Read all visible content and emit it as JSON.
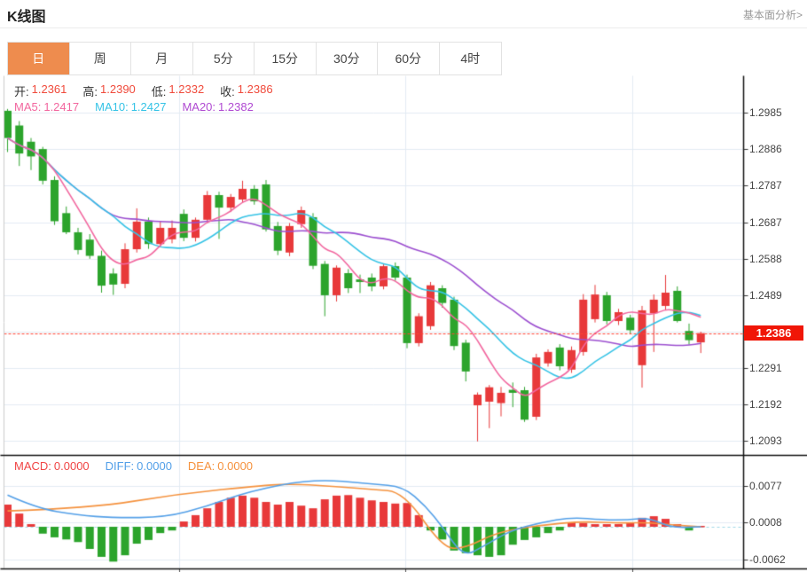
{
  "header": {
    "title": "K线图",
    "link": "基本面分析>"
  },
  "tabs": {
    "items": [
      "日",
      "周",
      "月",
      "5分",
      "15分",
      "30分",
      "60分",
      "4时"
    ],
    "active": "日",
    "active_index": 0
  },
  "legend": {
    "ohlc": [
      {
        "label": "开:",
        "value": "1.2361"
      },
      {
        "label": "高:",
        "value": "1.2390"
      },
      {
        "label": "低:",
        "value": "1.2332"
      },
      {
        "label": "收:",
        "value": "1.2386"
      }
    ],
    "ma": [
      {
        "label": "MA5:",
        "value": "1.2417",
        "color": "#f2679f"
      },
      {
        "label": "MA10:",
        "value": "1.2427",
        "color": "#35c3e6"
      },
      {
        "label": "MA20:",
        "value": "1.2382",
        "color": "#b04ad2"
      }
    ],
    "macd": [
      {
        "label": "MACD:",
        "value": "0.0000",
        "color": "#f04545"
      },
      {
        "label": "DIFF:",
        "value": "0.0000",
        "color": "#54a0e8"
      },
      {
        "label": "DEA:",
        "value": "0.0000",
        "color": "#f5923e"
      }
    ]
  },
  "price_axis": {
    "labels": [
      "1.2985",
      "1.2886",
      "1.2787",
      "1.2687",
      "1.2588",
      "1.2489",
      "1.2291",
      "1.2192",
      "1.2093"
    ],
    "current": "1.2386"
  },
  "macd_axis": {
    "labels": [
      "0.0077",
      "0.0008",
      "-0.0062"
    ]
  },
  "colors": {
    "up": "#e8393a",
    "down": "#2ca42c",
    "badge": "#f01607",
    "price_line": "#ff4433",
    "ma5": "#f2679f",
    "ma10": "#35c3e6",
    "ma20": "#9c4fd0",
    "diff_line": "#54a0e8",
    "dea_line": "#f5923e",
    "zero_dash": "#9fd8e8",
    "grid": "#e3ebf3",
    "border_dark": "#111",
    "border_light": "#ccc",
    "tab_active": "#ee8c4e"
  },
  "chart_data": {
    "type": "candlestick",
    "title": "K线图",
    "period": "日",
    "current_price": 1.2386,
    "last_bar": {
      "open": 1.2361,
      "high": 1.239,
      "low": 1.2332,
      "close": 1.2386
    },
    "y_axis": {
      "ticks": [
        1.2985,
        1.2886,
        1.2787,
        1.2687,
        1.2588,
        1.2489,
        1.239,
        1.2291,
        1.2192,
        1.2093
      ]
    },
    "macd_y_axis": {
      "ticks": [
        0.0077,
        0.0008,
        -0.0062
      ]
    },
    "ma_last": {
      "ma5": 1.2417,
      "ma10": 1.2427,
      "ma20": 1.2382
    },
    "macd_last": {
      "macd": 0.0,
      "diff": 0.0,
      "dea": 0.0
    },
    "candles_ohlc": [
      [
        1.299,
        1.2995,
        1.2878,
        1.2916
      ],
      [
        1.295,
        1.2962,
        1.284,
        1.2874
      ],
      [
        1.2906,
        1.2916,
        1.2829,
        1.2866
      ],
      [
        1.2886,
        1.2892,
        1.279,
        1.28
      ],
      [
        1.2802,
        1.2812,
        1.268,
        1.269
      ],
      [
        1.2712,
        1.273,
        1.2655,
        1.266
      ],
      [
        1.266,
        1.2672,
        1.26,
        1.2612
      ],
      [
        1.264,
        1.2655,
        1.2588,
        1.2596
      ],
      [
        1.2596,
        1.261,
        1.2496,
        1.2515
      ],
      [
        1.2548,
        1.2562,
        1.249,
        1.2518
      ],
      [
        1.252,
        1.263,
        1.2508,
        1.2614
      ],
      [
        1.2614,
        1.2725,
        1.2605,
        1.2689
      ],
      [
        1.2689,
        1.27,
        1.2615,
        1.2628
      ],
      [
        1.2628,
        1.269,
        1.262,
        1.2672
      ],
      [
        1.2641,
        1.2692,
        1.263,
        1.2672
      ],
      [
        1.271,
        1.2722,
        1.2636,
        1.2645
      ],
      [
        1.2645,
        1.27,
        1.2635,
        1.2694
      ],
      [
        1.2694,
        1.2772,
        1.2685,
        1.2761
      ],
      [
        1.2761,
        1.277,
        1.2642,
        1.2727
      ],
      [
        1.2727,
        1.2764,
        1.2715,
        1.2756
      ],
      [
        1.2749,
        1.28,
        1.274,
        1.2778
      ],
      [
        1.2778,
        1.2788,
        1.2735,
        1.2744
      ],
      [
        1.279,
        1.2802,
        1.2662,
        1.2668
      ],
      [
        1.2677,
        1.2688,
        1.2598,
        1.261
      ],
      [
        1.2605,
        1.2685,
        1.2595,
        1.2677
      ],
      [
        1.2682,
        1.273,
        1.2672,
        1.272
      ],
      [
        1.2701,
        1.2712,
        1.256,
        1.2569
      ],
      [
        1.2574,
        1.2582,
        1.2432,
        1.2489
      ],
      [
        1.2489,
        1.257,
        1.2472,
        1.2564
      ],
      [
        1.2549,
        1.256,
        1.2495,
        1.2508
      ],
      [
        1.2532,
        1.2545,
        1.2495,
        1.2525
      ],
      [
        1.2537,
        1.2548,
        1.25,
        1.2513
      ],
      [
        1.2513,
        1.2575,
        1.2505,
        1.2568
      ],
      [
        1.2568,
        1.2578,
        1.2528,
        1.2537
      ],
      [
        1.2537,
        1.2545,
        1.2345,
        1.2359
      ],
      [
        1.2359,
        1.244,
        1.235,
        1.2432
      ],
      [
        1.2405,
        1.2525,
        1.2395,
        1.2516
      ],
      [
        1.2508,
        1.2516,
        1.2455,
        1.2468
      ],
      [
        1.2477,
        1.2485,
        1.234,
        1.2351
      ],
      [
        1.236,
        1.2368,
        1.2255,
        1.2282
      ],
      [
        1.219,
        1.2225,
        1.2092,
        1.2219
      ],
      [
        1.22,
        1.2245,
        1.2128,
        1.2239
      ],
      [
        1.2196,
        1.224,
        1.216,
        1.2224
      ],
      [
        1.2232,
        1.2252,
        1.2185,
        1.2224
      ],
      [
        1.2231,
        1.224,
        1.2145,
        1.2151
      ],
      [
        1.2159,
        1.233,
        1.215,
        1.232
      ],
      [
        1.2304,
        1.2342,
        1.2295,
        1.2335
      ],
      [
        1.2347,
        1.2356,
        1.2285,
        1.2296
      ],
      [
        1.2287,
        1.235,
        1.2278,
        1.234
      ],
      [
        1.2335,
        1.2492,
        1.2325,
        1.2477
      ],
      [
        1.2424,
        1.2517,
        1.2415,
        1.2491
      ],
      [
        1.2489,
        1.2498,
        1.241,
        1.2419
      ],
      [
        1.2419,
        1.2452,
        1.2408,
        1.2443
      ],
      [
        1.2428,
        1.2436,
        1.2385,
        1.2394
      ],
      [
        1.2299,
        1.246,
        1.2238,
        1.2448
      ],
      [
        1.244,
        1.2491,
        1.2335,
        1.2477
      ],
      [
        1.246,
        1.2544,
        1.245,
        1.2496
      ],
      [
        1.2501,
        1.2513,
        1.2415,
        1.2419
      ],
      [
        1.2392,
        1.2412,
        1.2355,
        1.2367
      ],
      [
        1.2361,
        1.239,
        1.2332,
        1.2386
      ]
    ],
    "macd_hist": [
      0.0042,
      0.0025,
      0.0005,
      -0.0013,
      -0.002,
      -0.0024,
      -0.0029,
      -0.0042,
      -0.0057,
      -0.0066,
      -0.0054,
      -0.0032,
      -0.0025,
      -0.0012,
      -0.0007,
      0.001,
      0.0022,
      0.0035,
      0.0047,
      0.0055,
      0.0059,
      0.0055,
      0.0047,
      0.0042,
      0.0047,
      0.004,
      0.0035,
      0.0052,
      0.0059,
      0.006,
      0.0055,
      0.005,
      0.0047,
      0.0044,
      0.0045,
      0.0022,
      -0.0007,
      -0.0024,
      -0.0045,
      -0.005,
      -0.0054,
      -0.0057,
      -0.0054,
      -0.0034,
      -0.0025,
      -0.002,
      -0.0012,
      -0.0007,
      0.0008,
      0.0007,
      0.0005,
      0.0005,
      0.0005,
      0.0007,
      0.0017,
      0.002,
      0.0015,
      0.0005,
      -0.0007,
      0.0
    ],
    "diff_points": [
      [
        0,
        0.006
      ],
      [
        2.5,
        0.0035
      ],
      [
        6,
        0.0022
      ],
      [
        9,
        0.0017
      ],
      [
        13.5,
        0.0018
      ],
      [
        17,
        0.0039
      ],
      [
        20.5,
        0.0067
      ],
      [
        26,
        0.0091
      ],
      [
        31,
        0.0081
      ],
      [
        33.7,
        0.0076
      ],
      [
        35.6,
        0.0039
      ],
      [
        37,
        0.0
      ],
      [
        38.8,
        -0.0057
      ],
      [
        40.5,
        -0.0037
      ],
      [
        42.8,
        -0.0007
      ],
      [
        45.4,
        0.0008
      ],
      [
        48,
        0.0018
      ],
      [
        50.7,
        0.0013
      ],
      [
        52.8,
        0.0013
      ],
      [
        54.6,
        0.0017
      ],
      [
        56.5,
        -0.0002
      ],
      [
        59,
        0.0
      ]
    ],
    "dea_points": [
      [
        0,
        0.003
      ],
      [
        7,
        0.0035
      ],
      [
        14.5,
        0.0062
      ],
      [
        22,
        0.0079
      ],
      [
        24.5,
        0.0081
      ],
      [
        28,
        0.0076
      ],
      [
        31,
        0.0071
      ],
      [
        33.7,
        0.0066
      ],
      [
        37,
        -0.0039
      ],
      [
        38.8,
        -0.0042
      ],
      [
        41.7,
        -0.001
      ],
      [
        45.4,
        0.0003
      ],
      [
        48.8,
        0.001
      ],
      [
        52.2,
        0.0007
      ],
      [
        54.5,
        0.0008
      ],
      [
        56.8,
        0.0003
      ],
      [
        59,
        0.0
      ]
    ]
  }
}
